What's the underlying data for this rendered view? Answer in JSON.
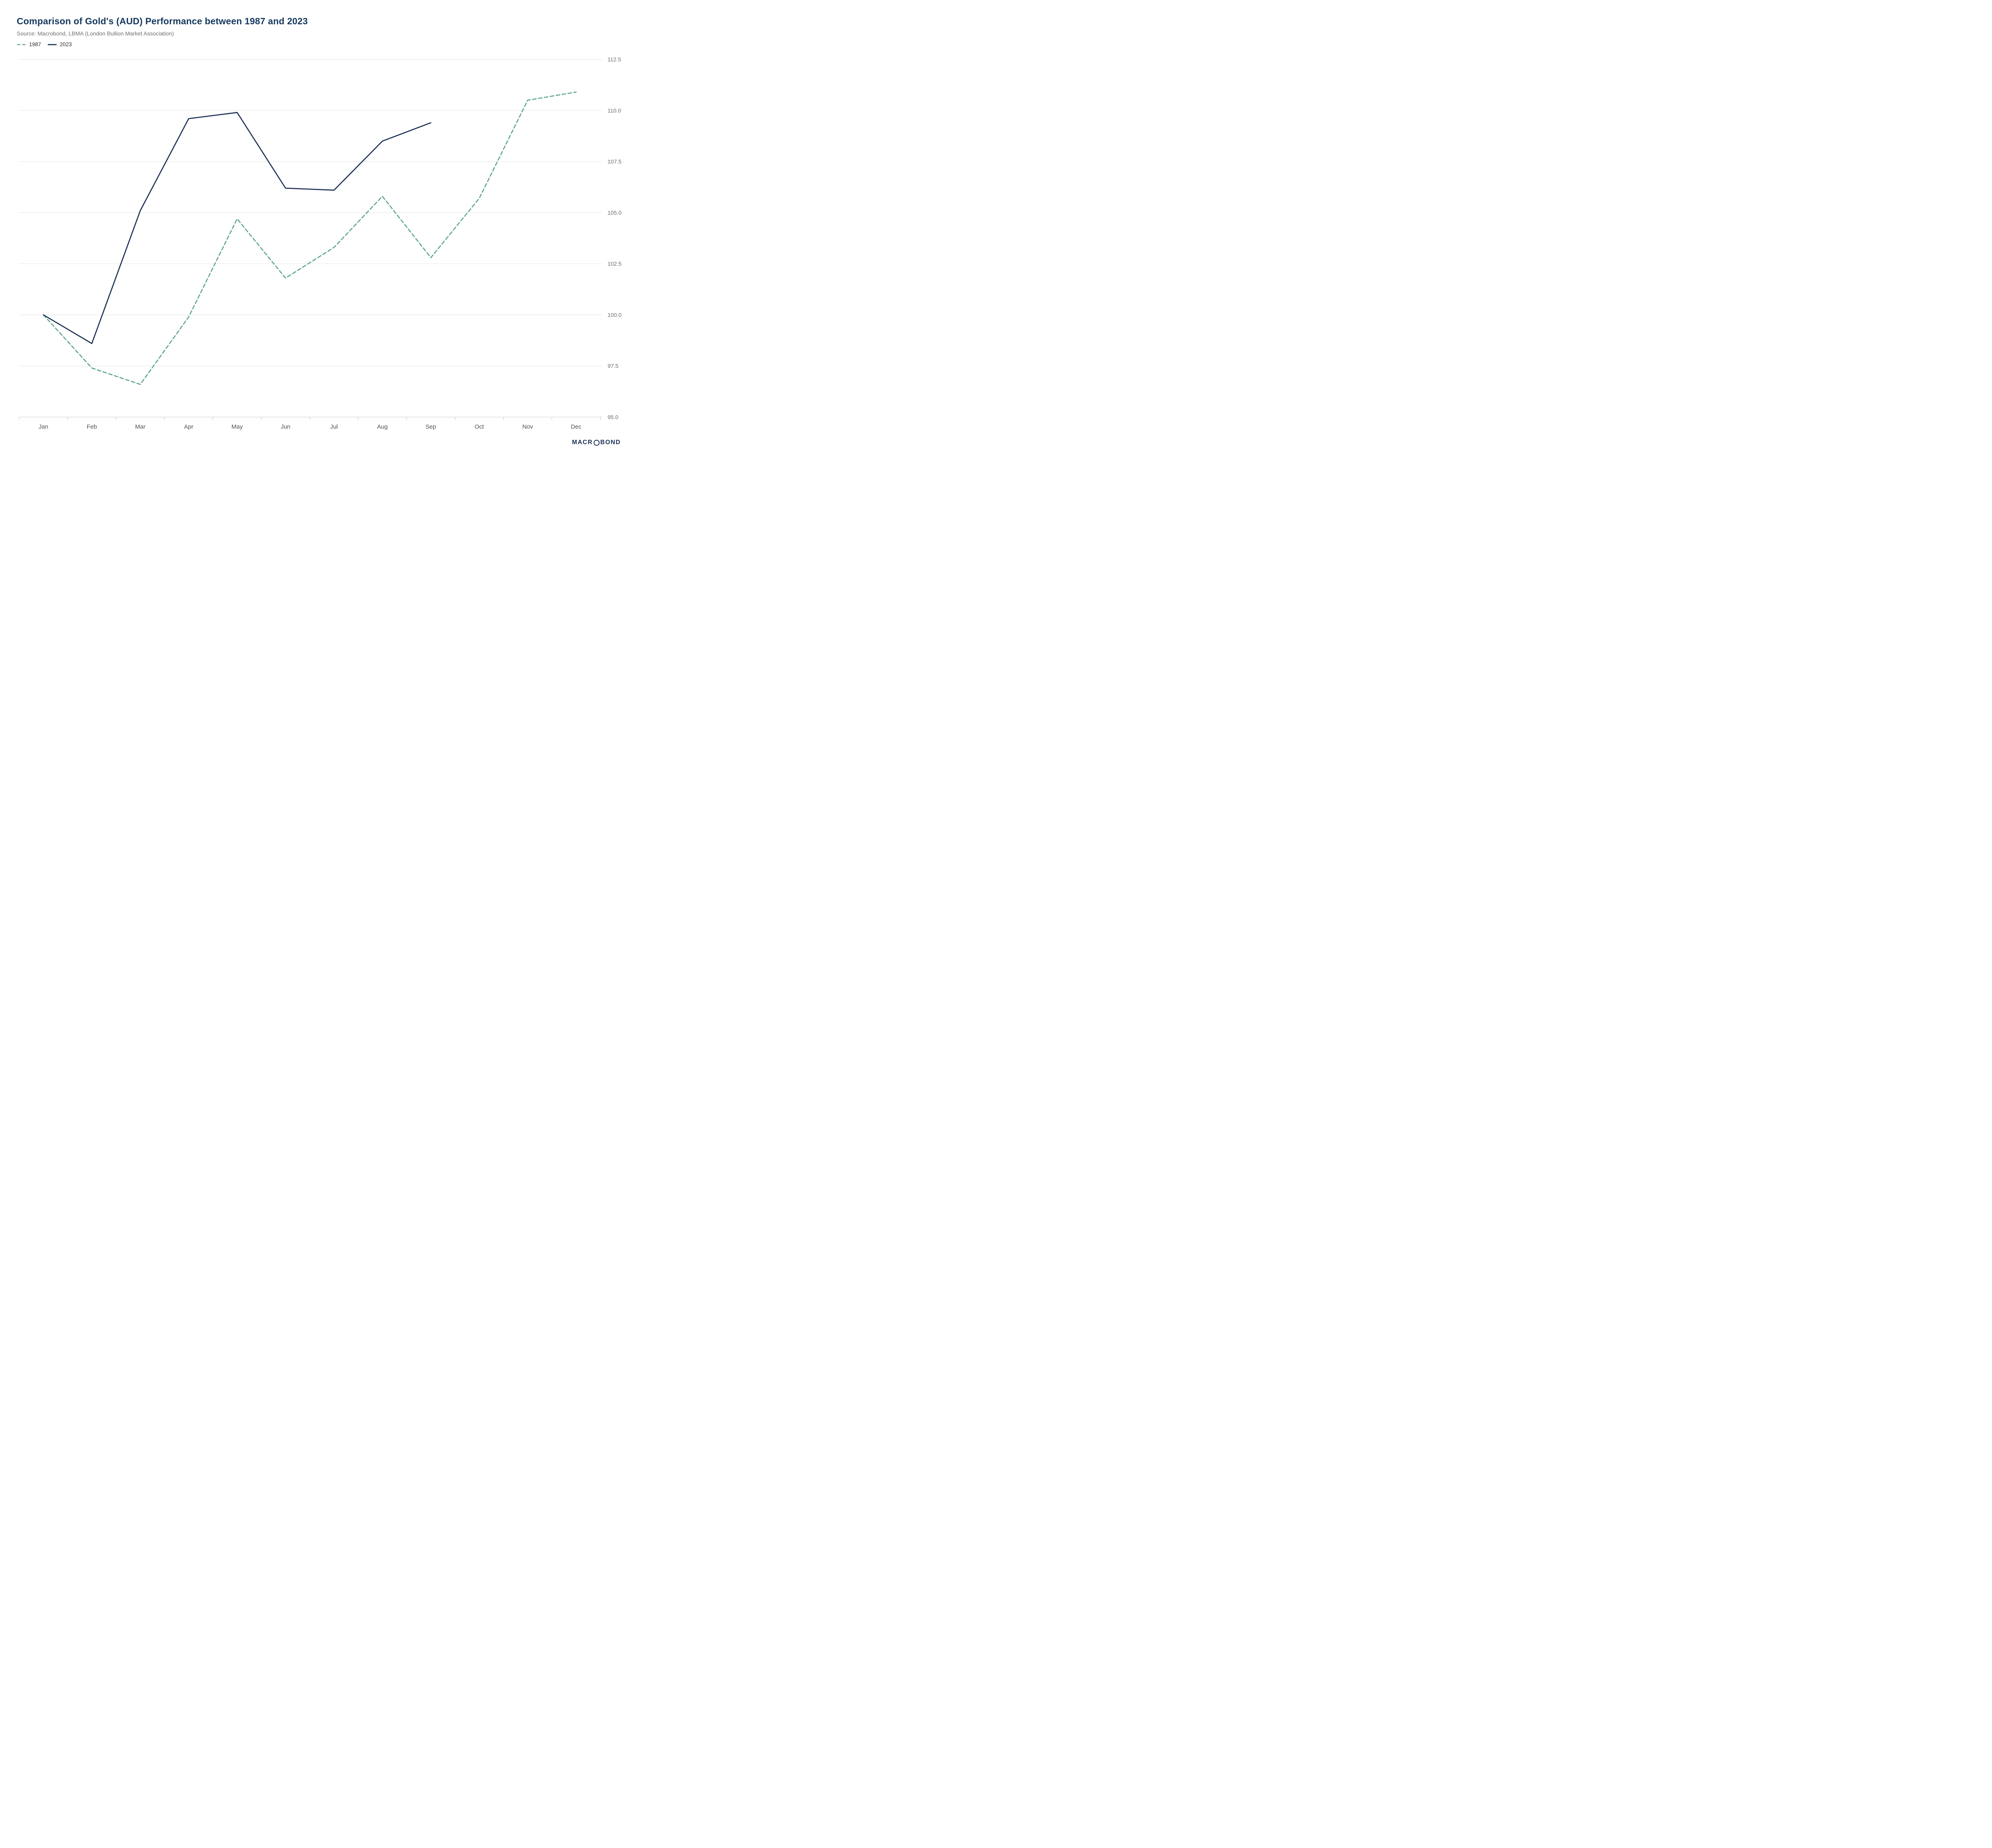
{
  "header": {
    "source": "Source: Macrobond, LBMA (London Bullion Market Association)"
  },
  "chart_data": {
    "type": "line",
    "title": "Comparison of Gold's (AUD) Performance between 1987 and 2023",
    "categories": [
      "Jan",
      "Feb",
      "Mar",
      "Apr",
      "May",
      "Jun",
      "Jul",
      "Aug",
      "Sep",
      "Oct",
      "Nov",
      "Dec"
    ],
    "series": [
      {
        "name": "1987",
        "color": "#5ea58f",
        "style": "dashed",
        "values": [
          100.0,
          97.4,
          96.6,
          99.9,
          104.7,
          101.8,
          103.3,
          105.8,
          102.8,
          105.7,
          110.5,
          110.9
        ]
      },
      {
        "name": "2023",
        "color": "#1b2f55",
        "style": "solid",
        "values": [
          100.0,
          98.6,
          105.1,
          109.6,
          109.9,
          106.2,
          106.1,
          108.5,
          109.4,
          null,
          null,
          null
        ]
      }
    ],
    "ylim": [
      95.0,
      112.5
    ],
    "yticks": [
      95.0,
      97.5,
      100.0,
      102.5,
      105.0,
      107.5,
      110.0,
      112.5
    ],
    "xlabel": "",
    "ylabel": "",
    "grid": "horizontal",
    "legend_position": "top-left",
    "y_axis_side": "right"
  },
  "footer": {
    "logo_parts": [
      "MACR",
      "O",
      "BOND"
    ]
  }
}
